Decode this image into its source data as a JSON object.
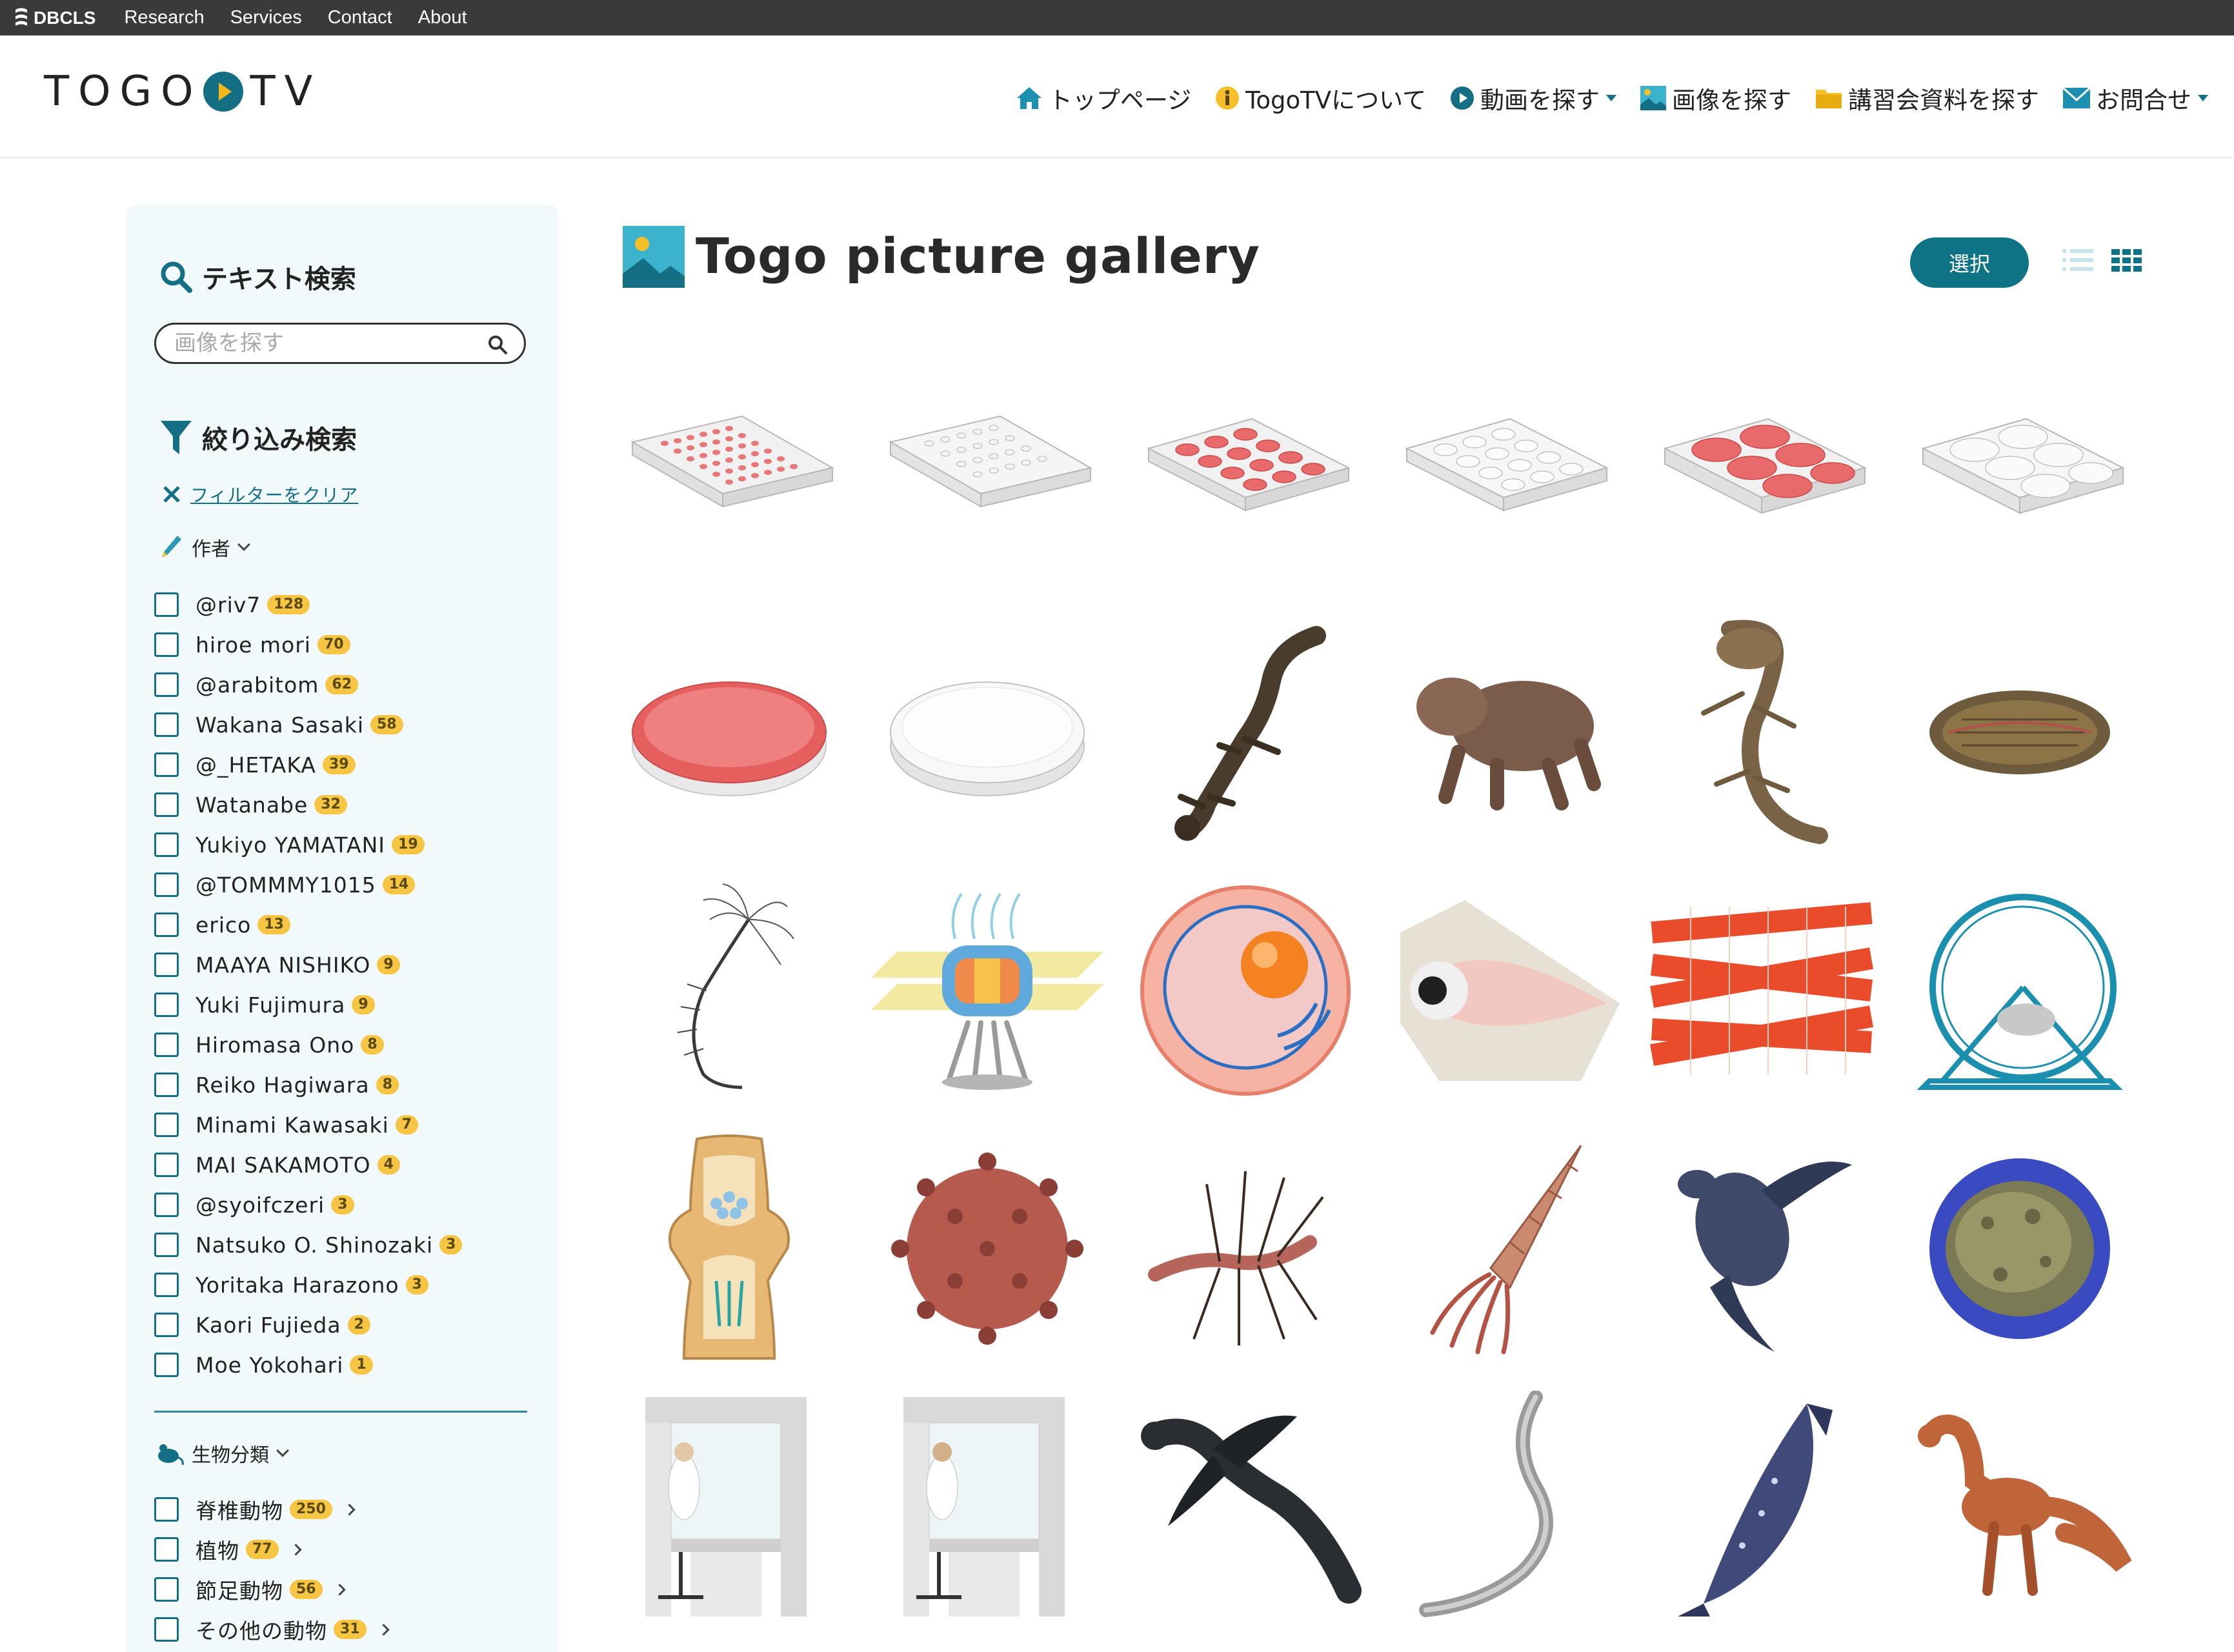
{
  "topbar": {
    "brand": "DBCLS",
    "links": [
      "Research",
      "Services",
      "Contact",
      "About"
    ]
  },
  "header": {
    "logo_left": "TOGO",
    "logo_right": "TV",
    "nav": [
      {
        "label": "トップページ",
        "icon": "home-icon"
      },
      {
        "label": "TogoTVについて",
        "icon": "info-icon"
      },
      {
        "label": "動画を探す",
        "icon": "play-icon",
        "dropdown": true
      },
      {
        "label": "画像を探す",
        "icon": "image-icon"
      },
      {
        "label": "講習会資料を探す",
        "icon": "folder-icon"
      },
      {
        "label": "お問合せ",
        "icon": "mail-icon",
        "dropdown": true
      }
    ]
  },
  "sidebar": {
    "text_search_title": "テキスト検索",
    "search_placeholder": "画像を探す",
    "filter_title": "絞り込み検索",
    "clear_filter": "フィルターをクリア",
    "author_group": "作者",
    "authors": [
      {
        "name": "@riv7",
        "count": "128"
      },
      {
        "name": "hiroe mori",
        "count": "70"
      },
      {
        "name": "@arabitom",
        "count": "62"
      },
      {
        "name": "Wakana Sasaki",
        "count": "58"
      },
      {
        "name": "@_HETAKA",
        "count": "39"
      },
      {
        "name": "Watanabe",
        "count": "32"
      },
      {
        "name": "Yukiyo YAMATANI",
        "count": "19"
      },
      {
        "name": "@TOMMMY1015",
        "count": "14"
      },
      {
        "name": "erico",
        "count": "13"
      },
      {
        "name": "MAAYA NISHIKO",
        "count": "9"
      },
      {
        "name": "Yuki Fujimura",
        "count": "9"
      },
      {
        "name": "Hiromasa Ono",
        "count": "8"
      },
      {
        "name": "Reiko Hagiwara",
        "count": "8"
      },
      {
        "name": "Minami Kawasaki",
        "count": "7"
      },
      {
        "name": "MAI SAKAMOTO",
        "count": "4"
      },
      {
        "name": "@syoifczeri",
        "count": "3"
      },
      {
        "name": "Natsuko O. Shinozaki",
        "count": "3"
      },
      {
        "name": "Yoritaka Harazono",
        "count": "3"
      },
      {
        "name": "Kaori Fujieda",
        "count": "2"
      },
      {
        "name": "Moe Yokohari",
        "count": "1"
      }
    ],
    "taxon_group": "生物分類",
    "taxa": [
      {
        "name": "脊椎動物",
        "count": "250"
      },
      {
        "name": "植物",
        "count": "77"
      },
      {
        "name": "節足動物",
        "count": "56"
      },
      {
        "name": "その他の動物",
        "count": "31"
      }
    ]
  },
  "main": {
    "title": "Togo picture gallery",
    "select_button": "選択",
    "images": [
      "96-well-plate-red",
      "96-well-plate-empty",
      "24-well-plate-red",
      "24-well-plate-empty",
      "6-well-plate-red",
      "6-well-plate-empty",
      "petri-dish-red",
      "petri-dish-empty",
      "salamander",
      "early-mammal-relative",
      "fossil-fish",
      "trilobite-like-fossil",
      "crinoid",
      "nuclear-pore",
      "cell",
      "eye-cross-section",
      "muscle-fibers",
      "hamster-wheel",
      "synapse",
      "coronavirus",
      "hallucigenia",
      "nautiloid",
      "sea-turtle",
      "cell-sphere",
      "clean-bench-woman",
      "clean-bench-man",
      "feathered-dinosaur",
      "eel",
      "coelacanth",
      "theropod"
    ]
  }
}
